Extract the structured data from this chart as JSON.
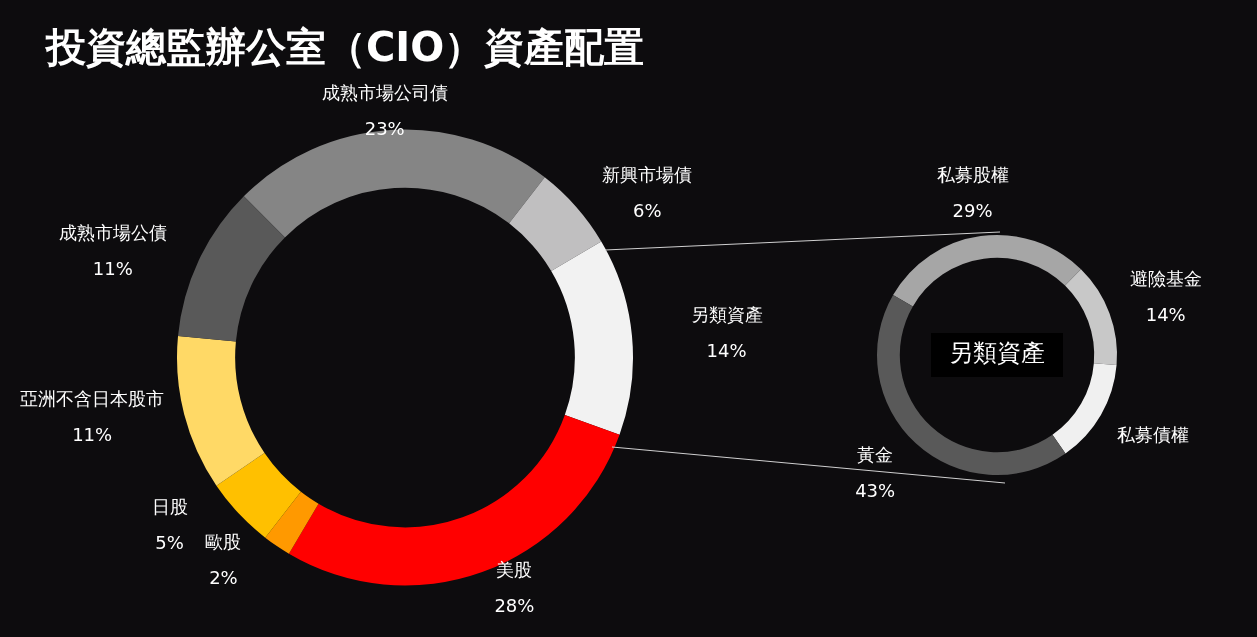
{
  "chart_data": [
    {
      "type": "donut",
      "title": "投資總監辦公室（CIO）資產配置",
      "categories": [
        "成熟市場公司債",
        "新興市場債",
        "另類資產",
        "美股",
        "歐股",
        "日股",
        "亞洲不含日本股市",
        "成熟市場公債"
      ],
      "values": [
        23,
        6,
        14,
        28,
        2,
        5,
        11,
        11
      ],
      "colors": [
        "#858585",
        "#c0bfc0",
        "#f2f2f2",
        "#ff0000",
        "#ff9900",
        "#ffc000",
        "#ffd966",
        "#595959"
      ],
      "value_labels": [
        "23%",
        "6%",
        "14%",
        "28%",
        "2%",
        "5%",
        "11%",
        "11%"
      ],
      "legend": false
    },
    {
      "type": "donut",
      "title": "另類資產",
      "categories": [
        "私募股權",
        "避險基金",
        "私募債權",
        "黃金"
      ],
      "values": [
        29,
        14,
        14,
        43
      ],
      "colors": [
        "#a6a6a6",
        "#c8c8c8",
        "#f0f0f0",
        "#595959"
      ],
      "value_labels": [
        "29%",
        "14%",
        null,
        "43%"
      ],
      "legend": false
    }
  ]
}
